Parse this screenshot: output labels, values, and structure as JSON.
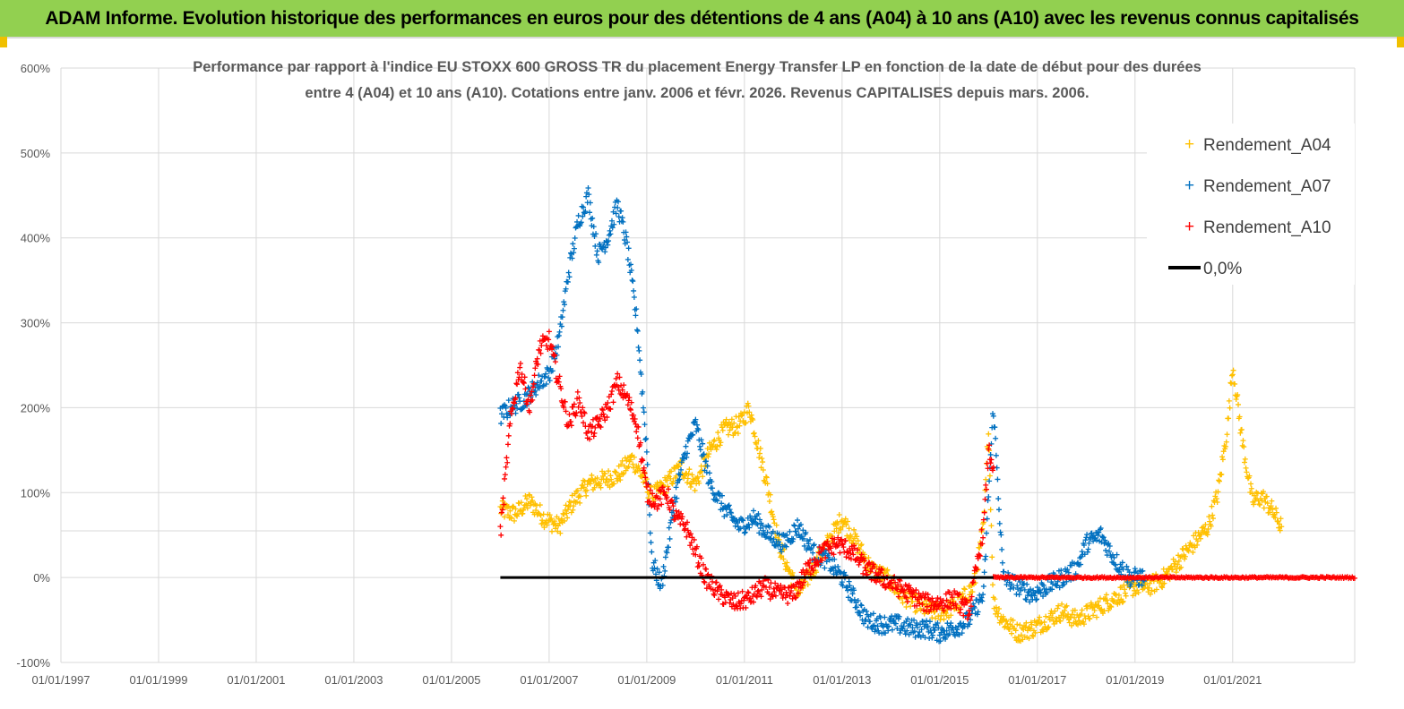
{
  "header": {
    "title": "ADAM Informe. Evolution historique des performances en euros pour des détentions de 4 ans (A04) à 10 ans (A10) avec les revenus connus capitalisés"
  },
  "colors": {
    "banner": "#92d050",
    "A04": "#ffc000",
    "A07": "#0070c0",
    "A10": "#ff0000",
    "zero": "#000000",
    "grid": "#d9d9d9"
  },
  "chart_data": {
    "type": "scatter",
    "title_line1": "Performance par rapport à l'indice EU STOXX 600 GROSS TR  du placement Energy Transfer LP en fonction de la date de début pour des durées",
    "title_line2": "entre 4 (A04) et 10 ans (A10).  Cotations entre janv. 2006 et févr. 2026. Revenus CAPITALISES depuis mars. 2006.",
    "xlabel": "",
    "ylabel": "",
    "x_tick_labels": [
      "01/01/1997",
      "01/01/1999",
      "01/01/2001",
      "01/01/2003",
      "01/01/2005",
      "01/01/2007",
      "01/01/2009",
      "01/01/2011",
      "01/01/2013",
      "01/01/2015",
      "01/01/2017",
      "01/01/2019",
      "01/01/2021"
    ],
    "xlim": [
      1997.0,
      2023.5
    ],
    "y_tick_labels": [
      "-100%",
      "0%",
      "100%",
      "200%",
      "300%",
      "400%",
      "500%",
      "600%"
    ],
    "ylim": [
      -100,
      600
    ],
    "legend": {
      "position": "top-right",
      "entries": [
        "Rendement_A04",
        "Rendement_A07",
        "Rendement_A10",
        "0,0%"
      ]
    },
    "series": [
      {
        "name": "Rendement_A04",
        "marker": "+",
        "x": [
          2006.0,
          2006.3,
          2006.6,
          2006.9,
          2007.2,
          2007.5,
          2007.8,
          2008.1,
          2008.4,
          2008.7,
          2008.9,
          2009.1,
          2009.4,
          2009.7,
          2010.0,
          2010.3,
          2010.6,
          2010.9,
          2011.1,
          2011.3,
          2011.5,
          2011.7,
          2011.9,
          2012.1,
          2012.4,
          2012.7,
          2013.0,
          2013.3,
          2013.6,
          2013.9,
          2014.2,
          2014.5,
          2014.8,
          2015.1,
          2015.4,
          2015.7,
          2015.9,
          2016.0,
          2016.1,
          2016.3,
          2016.6,
          2016.9,
          2017.2,
          2017.5,
          2017.8,
          2018.1,
          2018.4,
          2018.7,
          2019.0,
          2019.3,
          2019.6,
          2019.9,
          2020.2,
          2020.5,
          2020.7,
          2020.9,
          2021.0,
          2021.2,
          2021.4,
          2021.6,
          2021.8,
          2022.0
        ],
        "values": [
          80,
          75,
          90,
          70,
          60,
          90,
          110,
          115,
          120,
          140,
          120,
          95,
          110,
          130,
          110,
          150,
          175,
          180,
          200,
          150,
          100,
          40,
          10,
          -20,
          10,
          40,
          70,
          40,
          10,
          0,
          -20,
          -30,
          -40,
          -40,
          -30,
          -10,
          60,
          180,
          -30,
          -50,
          -65,
          -60,
          -50,
          -40,
          -50,
          -40,
          -30,
          -20,
          -10,
          -10,
          0,
          20,
          40,
          60,
          100,
          180,
          250,
          160,
          90,
          95,
          80,
          60
        ]
      },
      {
        "name": "Rendement_A07",
        "marker": "+",
        "x": [
          2006.0,
          2006.2,
          2006.5,
          2006.8,
          2007.0,
          2007.2,
          2007.4,
          2007.6,
          2007.8,
          2008.0,
          2008.2,
          2008.4,
          2008.6,
          2008.8,
          2009.0,
          2009.1,
          2009.3,
          2009.6,
          2009.8,
          2010.0,
          2010.3,
          2010.6,
          2010.9,
          2011.2,
          2011.5,
          2011.8,
          2012.1,
          2012.4,
          2012.7,
          2013.0,
          2013.2,
          2013.5,
          2013.8,
          2014.1,
          2014.4,
          2014.7,
          2015.0,
          2015.3,
          2015.6,
          2015.9,
          2016.0,
          2016.1,
          2016.3,
          2016.6,
          2016.9,
          2017.2,
          2017.5,
          2017.8,
          2018.0,
          2018.3,
          2018.6,
          2018.9,
          2019.2
        ],
        "values": [
          190,
          200,
          210,
          230,
          240,
          280,
          360,
          420,
          450,
          380,
          400,
          440,
          390,
          300,
          150,
          20,
          -10,
          100,
          150,
          180,
          110,
          80,
          60,
          70,
          50,
          40,
          60,
          30,
          20,
          0,
          -20,
          -50,
          -55,
          -55,
          -60,
          -60,
          -65,
          -60,
          -50,
          -20,
          100,
          200,
          0,
          -10,
          -20,
          -10,
          0,
          10,
          40,
          50,
          20,
          0,
          0
        ]
      },
      {
        "name": "Rendement_A10",
        "marker": "+",
        "x": [
          2006.0,
          2006.2,
          2006.4,
          2006.6,
          2006.8,
          2007.0,
          2007.2,
          2007.4,
          2007.6,
          2007.8,
          2008.0,
          2008.2,
          2008.4,
          2008.6,
          2008.8,
          2009.0,
          2009.2,
          2009.4,
          2009.6,
          2009.8,
          2010.0,
          2010.2,
          2010.5,
          2010.8,
          2011.1,
          2011.4,
          2011.7,
          2012.0,
          2012.3,
          2012.6,
          2012.9,
          2013.2,
          2013.5,
          2013.8,
          2014.1,
          2014.4,
          2014.7,
          2015.0,
          2015.3,
          2015.6,
          2015.9,
          2016.0,
          2016.1
        ],
        "values": [
          50,
          180,
          250,
          200,
          270,
          280,
          230,
          180,
          210,
          170,
          180,
          200,
          230,
          210,
          180,
          100,
          90,
          100,
          70,
          60,
          30,
          0,
          -20,
          -30,
          -25,
          -10,
          -20,
          -20,
          10,
          30,
          40,
          30,
          10,
          0,
          -10,
          -20,
          -30,
          -30,
          -25,
          -40,
          60,
          150,
          130
        ]
      },
      {
        "name": "0,0%",
        "marker": "line",
        "x": [
          2006.0,
          2016.1
        ],
        "values": [
          0,
          0
        ]
      }
    ],
    "a10_zero_band": {
      "x_start": 2016.1,
      "x_end": 2023.5,
      "value": 0
    }
  }
}
